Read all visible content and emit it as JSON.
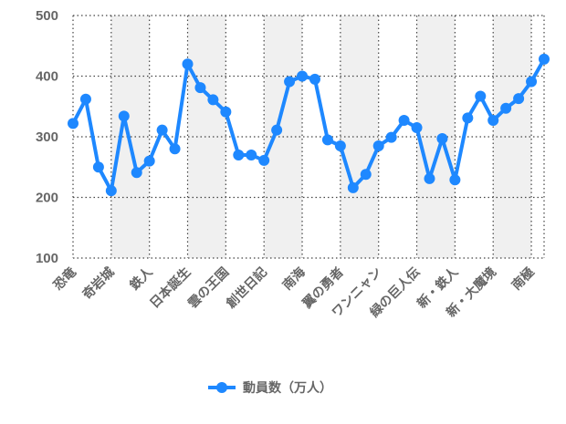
{
  "chart_data": {
    "type": "line",
    "legend_position": "bottom",
    "grid": true,
    "ylim": [
      100,
      500
    ],
    "yticks": [
      100,
      200,
      300,
      400,
      500
    ],
    "x_tick_labels": [
      "恐竜",
      "奇岩城",
      "鉄人",
      "日本誕生",
      "雲の王国",
      "創世日記",
      "南海",
      "翼の勇者",
      "ワンニャン",
      "緑の巨人伝",
      "新・鉄人",
      "新・大魔境",
      "南極"
    ],
    "series": [
      {
        "name": "動員数（万人）",
        "color": "#1e88ff",
        "values": [
          322,
          362,
          250,
          211,
          334,
          241,
          260,
          311,
          280,
          420,
          381,
          361,
          341,
          270,
          270,
          261,
          311,
          391,
          400,
          395,
          295,
          285,
          216,
          238,
          285,
          299,
          327,
          315,
          231,
          297,
          229,
          331,
          367,
          327,
          347,
          363,
          391,
          428
        ]
      }
    ]
  }
}
